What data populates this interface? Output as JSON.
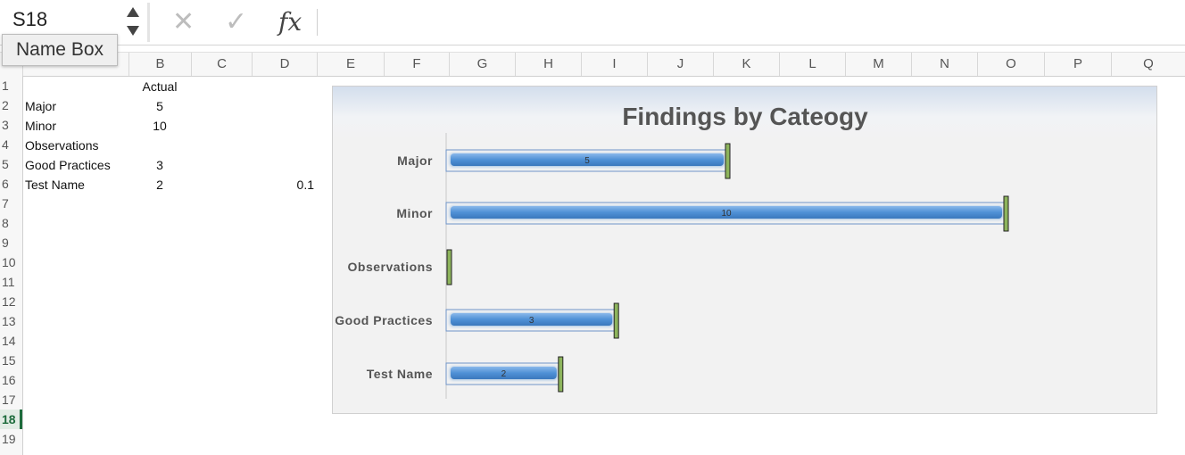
{
  "formula_bar": {
    "name_box_value": "S18",
    "tooltip": "Name Box",
    "cancel_icon": "cancel-icon",
    "enter_icon": "enter-icon",
    "fx_label": "fx"
  },
  "grid": {
    "columns": [
      "B",
      "C",
      "D",
      "E",
      "F",
      "G",
      "H",
      "I",
      "J",
      "K",
      "L",
      "M",
      "N",
      "O",
      "P",
      "Q"
    ],
    "rows": [
      "1",
      "2",
      "3",
      "4",
      "5",
      "6",
      "7",
      "8",
      "9",
      "10",
      "11",
      "12",
      "13",
      "14",
      "15",
      "16",
      "17",
      "18",
      "19"
    ],
    "selected_row": "18",
    "cells": {
      "b1": "Actual",
      "a2": "Major",
      "b2": "5",
      "a3": "Minor",
      "b3": "10",
      "a4": "Observations",
      "a5": "Good Practices",
      "b5": "3",
      "a6": "Test Name",
      "b6": "2",
      "d6": "0.1"
    }
  },
  "chart_data": {
    "type": "bar",
    "orientation": "horizontal",
    "title": "Findings by Cateogy",
    "categories": [
      "Major",
      "Minor",
      "Observations",
      "Good Practices",
      "Test Name"
    ],
    "series": [
      {
        "values": [
          5,
          10,
          0,
          3,
          2
        ],
        "color": "#4f91d6"
      }
    ],
    "data_labels": [
      "5",
      "10",
      "",
      "3",
      "2"
    ],
    "marker_color": "#8db45c",
    "xlim": [
      0,
      10
    ],
    "grid": false,
    "legend": "none"
  }
}
